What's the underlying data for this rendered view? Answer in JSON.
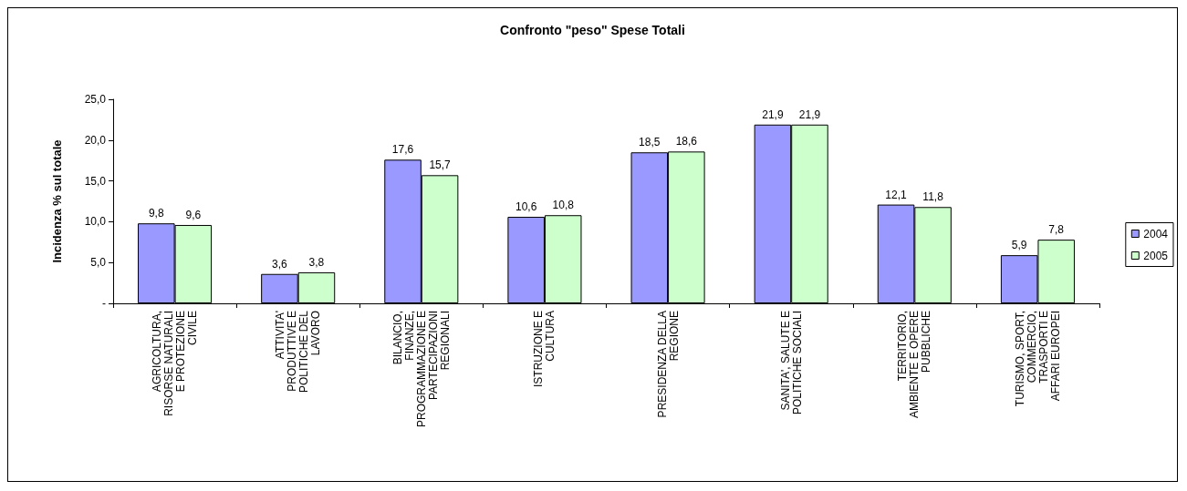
{
  "chart_data": {
    "type": "bar",
    "title": "Confronto \"peso\" Spese Totali",
    "ylabel": "Incidenza % sul totale",
    "categories": [
      "AGRICOLTURA, RISORSE NATURALI E PROTEZIONE CIVILE",
      "ATTIVITA' PRODUTTIVE E POLITICHE DEL LAVORO",
      "BILANCIO, FINANZE, PROGRAMMAZIONE E PARTECIPAZIONI REGIONALI",
      "ISTRUZIONE E CULTURA",
      "PRESIDENZA DELLA REGIONE",
      "SANITA', SALUTE E POLITICHE SOCIALI",
      "TERRITORIO, AMBIENTE E OPERE PUBBLICHE",
      "TURISMO, SPORT, COMMERCIO, TRASPORTI E AFFARI EUROPEI"
    ],
    "series": [
      {
        "name": "2004",
        "color": "#9999ff",
        "values": [
          9.8,
          3.6,
          17.6,
          10.6,
          18.5,
          21.9,
          12.1,
          5.9
        ],
        "value_labels": [
          "9,8",
          "3,6",
          "17,6",
          "10,6",
          "18,5",
          "21,9",
          "12,1",
          "5,9"
        ]
      },
      {
        "name": "2005",
        "color": "#ccffcc",
        "values": [
          9.6,
          3.8,
          15.7,
          10.8,
          18.6,
          21.9,
          11.8,
          7.8
        ],
        "value_labels": [
          "9,6",
          "3,8",
          "15,7",
          "10,8",
          "18,6",
          "21,9",
          "11,8",
          "7,8"
        ]
      }
    ],
    "ylim": [
      0,
      25
    ],
    "yticks": [
      {
        "value": 0,
        "label": "-"
      },
      {
        "value": 5,
        "label": "5,0"
      },
      {
        "value": 10,
        "label": "10,0"
      },
      {
        "value": 15,
        "label": "15,0"
      },
      {
        "value": 20,
        "label": "20,0"
      },
      {
        "value": 25,
        "label": "25,0"
      }
    ],
    "grid": false,
    "legend": "right"
  }
}
